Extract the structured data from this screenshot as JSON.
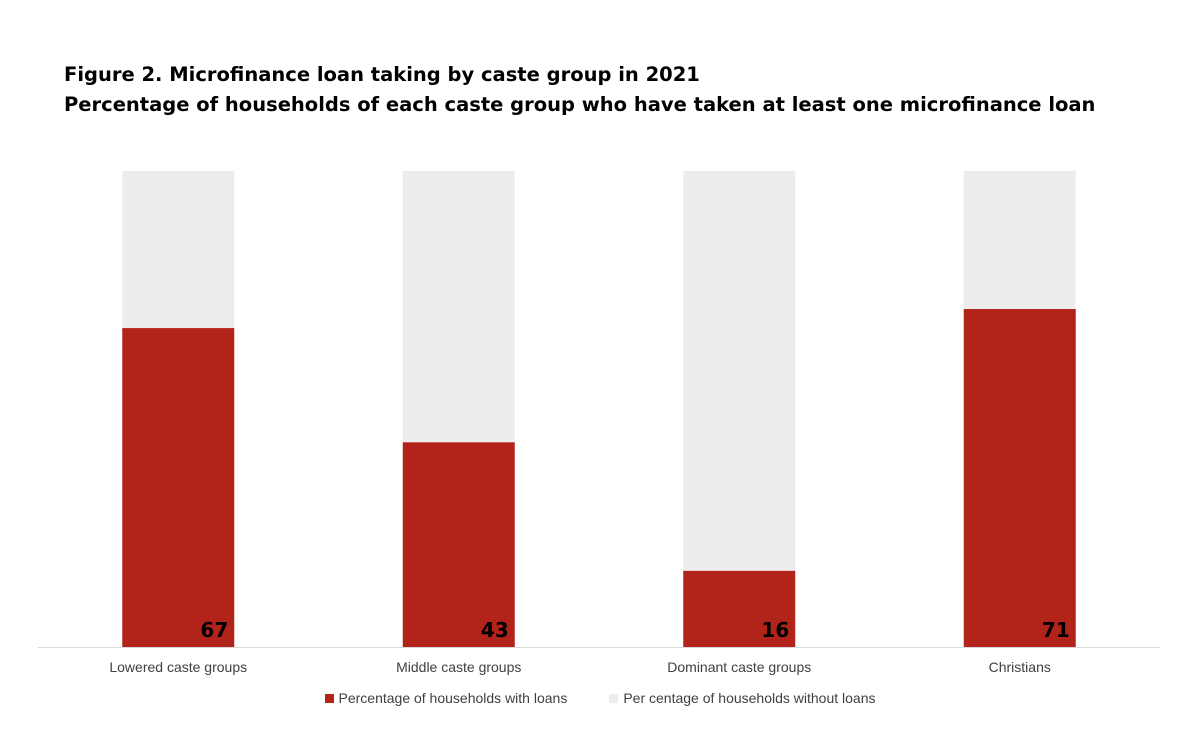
{
  "title": "Figure 2. Microfinance loan taking by caste group in 2021",
  "subtitle": "Percentage of households of each caste group who have taken at least one microfinance loan",
  "colors": {
    "with_loans": "#b22419",
    "without_loans": "#ededed",
    "axis": "#d9d9d9",
    "label": "#404040"
  },
  "chart_data": {
    "type": "bar",
    "stacked": true,
    "categories": [
      "Lowered caste groups",
      "Middle caste groups",
      "Dominant caste groups",
      "Christians"
    ],
    "series": [
      {
        "name": "Percentage of households with loans",
        "values": [
          67,
          43,
          16,
          71
        ]
      },
      {
        "name": "Per centage of households without loans",
        "values": [
          33,
          57,
          84,
          29
        ]
      }
    ],
    "data_labels": [
      "67",
      "43",
      "16",
      "71"
    ],
    "ylim": [
      0,
      100
    ],
    "grid": false,
    "legend_position": "bottom"
  }
}
